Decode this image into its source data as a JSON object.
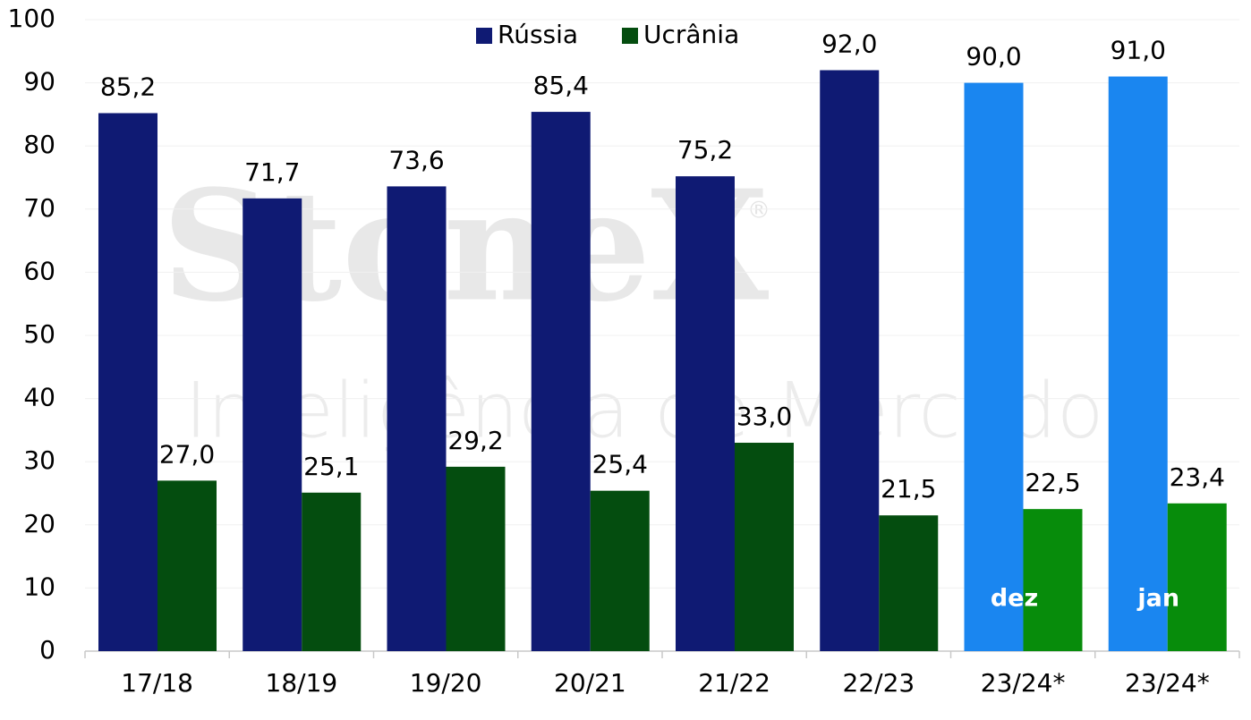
{
  "chart_data": {
    "type": "bar",
    "categories": [
      "17/18",
      "18/19",
      "19/20",
      "20/21",
      "21/22",
      "22/23",
      "23/24*",
      "23/24*"
    ],
    "series": [
      {
        "name": "Rússia",
        "color": "#0f1a73",
        "colors": [
          "#0f1a73",
          "#0f1a73",
          "#0f1a73",
          "#0f1a73",
          "#0f1a73",
          "#0f1a73",
          "#1a86f0",
          "#1a86f0"
        ],
        "values": [
          85.2,
          71.7,
          73.6,
          85.4,
          75.2,
          92.0,
          90.0,
          91.0
        ],
        "value_labels": [
          "85,2",
          "71,7",
          "73,6",
          "85,4",
          "75,2",
          "92,0",
          "90,0",
          "91,0"
        ]
      },
      {
        "name": "Ucrânia",
        "color": "#044d0f",
        "colors": [
          "#044d0f",
          "#044d0f",
          "#044d0f",
          "#044d0f",
          "#044d0f",
          "#044d0f",
          "#078c0b",
          "#078c0b"
        ],
        "values": [
          27.0,
          25.1,
          29.2,
          25.4,
          33.0,
          21.5,
          22.5,
          23.4
        ],
        "value_labels": [
          "27,0",
          "25,1",
          "29,2",
          "25,4",
          "33,0",
          "21,5",
          "22,5",
          "23,4"
        ]
      }
    ],
    "annotations": [
      "dez",
      "jan"
    ],
    "ylim": [
      0,
      100
    ],
    "yticks": [
      0,
      10,
      20,
      30,
      40,
      50,
      60,
      70,
      80,
      90,
      100
    ],
    "grid": true,
    "legend": "top",
    "watermark": {
      "brand": "StoneX",
      "registered": "®",
      "tagline": "Inteligência de Mercado"
    }
  }
}
